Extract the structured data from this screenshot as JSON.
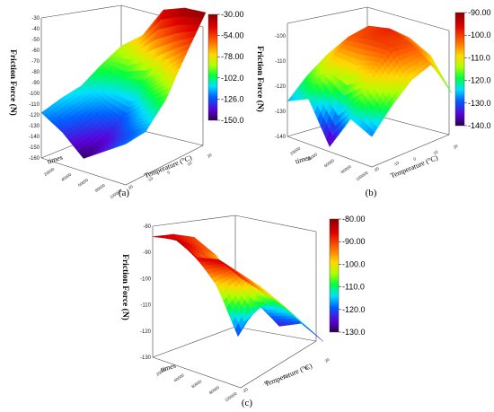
{
  "figure": {
    "panels": [
      {
        "letter": "(a)",
        "zlabel": "Friction Force (N)",
        "xlabel": "times",
        "ylabel": "Temperature (°C)"
      },
      {
        "letter": "(b)",
        "zlabel": "Friction Force (N)",
        "xlabel": "times",
        "ylabel": "Temperature (°C)"
      },
      {
        "letter": "(c)",
        "zlabel": "Friction Force (N)",
        "xlabel": "times",
        "ylabel": "Temperature (°C)"
      }
    ]
  },
  "chart_data": [
    {
      "type": "surface",
      "panel": "(a)",
      "zlabel": "Friction Force (N)",
      "xlabel": "times",
      "ylabel": "Temperature (°C)",
      "zlim": [
        -160,
        -30
      ],
      "z_ticks": [
        "-30",
        "-40",
        "-50",
        "-60",
        "-70",
        "-80",
        "-90",
        "-100",
        "-110",
        "-120",
        "-130",
        "-140",
        "-150",
        "-160"
      ],
      "x_ticks": [
        "20000",
        "40000",
        "60000",
        "80000",
        "100000"
      ],
      "y_ticks": [
        "-20",
        "-10",
        "0",
        "10",
        "20"
      ],
      "colorbar": {
        "ticks": [
          "-30.00",
          "-54.00",
          "-78.00",
          "-102.0",
          "-126.0",
          "-150.0"
        ],
        "range": [
          -150,
          -30
        ]
      },
      "surface": {
        "x": [
          20000,
          40000,
          60000,
          80000,
          100000
        ],
        "y": [
          -20,
          -10,
          0,
          10,
          20
        ],
        "z": [
          [
            -118,
            -112,
            -108,
            -96,
            -86
          ],
          [
            -130,
            -125,
            -118,
            -102,
            -70
          ],
          [
            -148,
            -140,
            -126,
            -98,
            -40
          ],
          [
            -135,
            -128,
            -110,
            -80,
            -32
          ],
          [
            -122,
            -118,
            -96,
            -62,
            -30
          ]
        ]
      }
    },
    {
      "type": "surface",
      "panel": "(b)",
      "zlabel": "Friction Force (N)",
      "xlabel": "times",
      "ylabel": "Temperature (°C)",
      "zlim": [
        -140,
        -95
      ],
      "z_ticks": [
        "-100",
        "-110",
        "-120",
        "-130",
        "-140"
      ],
      "x_ticks": [
        "20000",
        "40000",
        "60000",
        "80000",
        "100000"
      ],
      "y_ticks": [
        "-20",
        "-10",
        "0",
        "10",
        "20"
      ],
      "colorbar": {
        "ticks": [
          "-90.00",
          "-100.0",
          "-110.0",
          "-120.0",
          "-130.0",
          "-140.0"
        ],
        "range": [
          -140,
          -90
        ]
      },
      "surface": {
        "x": [
          20000,
          40000,
          60000,
          80000,
          100000
        ],
        "y": [
          -20,
          -10,
          0,
          10,
          20
        ],
        "z": [
          [
            -126,
            -118,
            -112,
            -108,
            -116
          ],
          [
            -122,
            -110,
            -102,
            -100,
            -108
          ],
          [
            -138,
            -112,
            -100,
            -98,
            -104
          ],
          [
            -124,
            -108,
            -100,
            -101,
            -108
          ],
          [
            -128,
            -118,
            -110,
            -106,
            -120
          ]
        ]
      }
    },
    {
      "type": "surface",
      "panel": "(c)",
      "zlabel": "Friction Force (N)",
      "xlabel": "times",
      "ylabel": "Temperature (°C)",
      "zlim": [
        -130,
        -80
      ],
      "z_ticks": [
        "-80",
        "-90",
        "-100",
        "-110",
        "-120",
        "-130"
      ],
      "x_ticks": [
        "20000",
        "40000",
        "60000",
        "80000",
        "100000"
      ],
      "y_ticks": [
        "-20",
        "-10",
        "0",
        "10",
        "20"
      ],
      "colorbar": {
        "ticks": [
          "-80.00",
          "-90.00",
          "-100.0",
          "-110.0",
          "-120.0",
          "-130.0"
        ],
        "range": [
          -130,
          -80
        ]
      },
      "surface": {
        "x": [
          20000,
          40000,
          60000,
          80000,
          100000
        ],
        "y": [
          -20,
          -10,
          0,
          10,
          20
        ],
        "z": [
          [
            -84,
            -86,
            -90,
            -102,
            -112
          ],
          [
            -82,
            -88,
            -94,
            -108,
            -118
          ],
          [
            -86,
            -100,
            -122,
            -112,
            -124
          ],
          [
            -84,
            -92,
            -100,
            -110,
            -120
          ],
          [
            -88,
            -96,
            -104,
            -114,
            -124
          ]
        ]
      }
    }
  ]
}
